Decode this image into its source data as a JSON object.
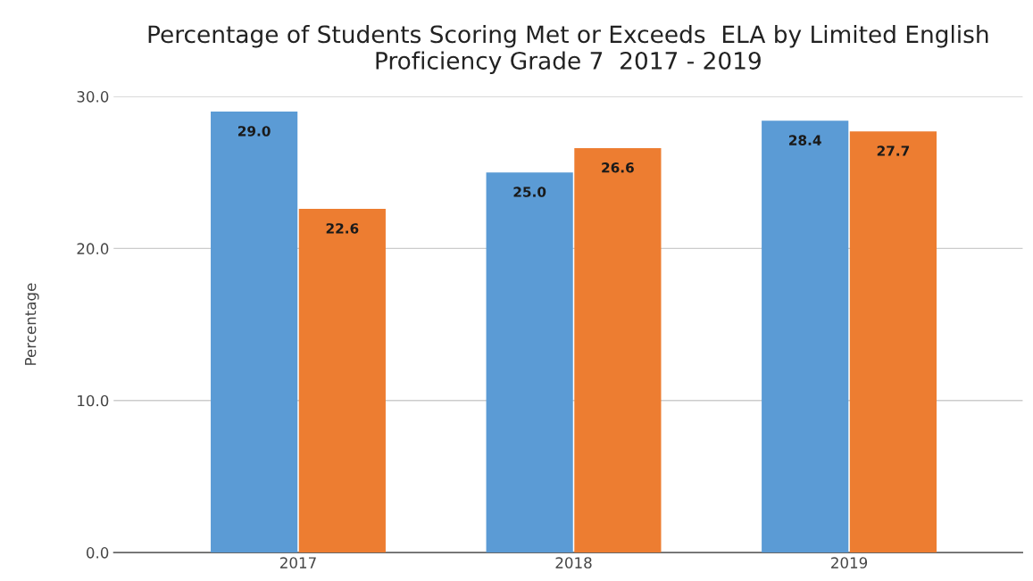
{
  "chart_data": {
    "type": "bar",
    "title": "Percentage of Students Scoring Met or Exceeds  ELA by Limited English\nProficiency Grade 7  2017 - 2019",
    "ylabel": "Percentage",
    "categories": [
      "2017",
      "2018",
      "2019"
    ],
    "series": [
      {
        "color": "#5b9bd5",
        "values": [
          29.0,
          25.0,
          28.4
        ],
        "value_labels": [
          "29.0",
          "25.0",
          "28.4"
        ]
      },
      {
        "color": "#ed7d31",
        "values": [
          22.6,
          26.6,
          27.7
        ],
        "value_labels": [
          "22.6",
          "26.6",
          "27.7"
        ]
      }
    ],
    "ylim": [
      0,
      30
    ],
    "yticks": [
      {
        "value": 0,
        "label": "0.0"
      },
      {
        "value": 10,
        "label": "10.0"
      },
      {
        "value": 20,
        "label": "20.0"
      },
      {
        "value": 30,
        "label": "30.0"
      }
    ],
    "grid": "y",
    "legend": false
  }
}
